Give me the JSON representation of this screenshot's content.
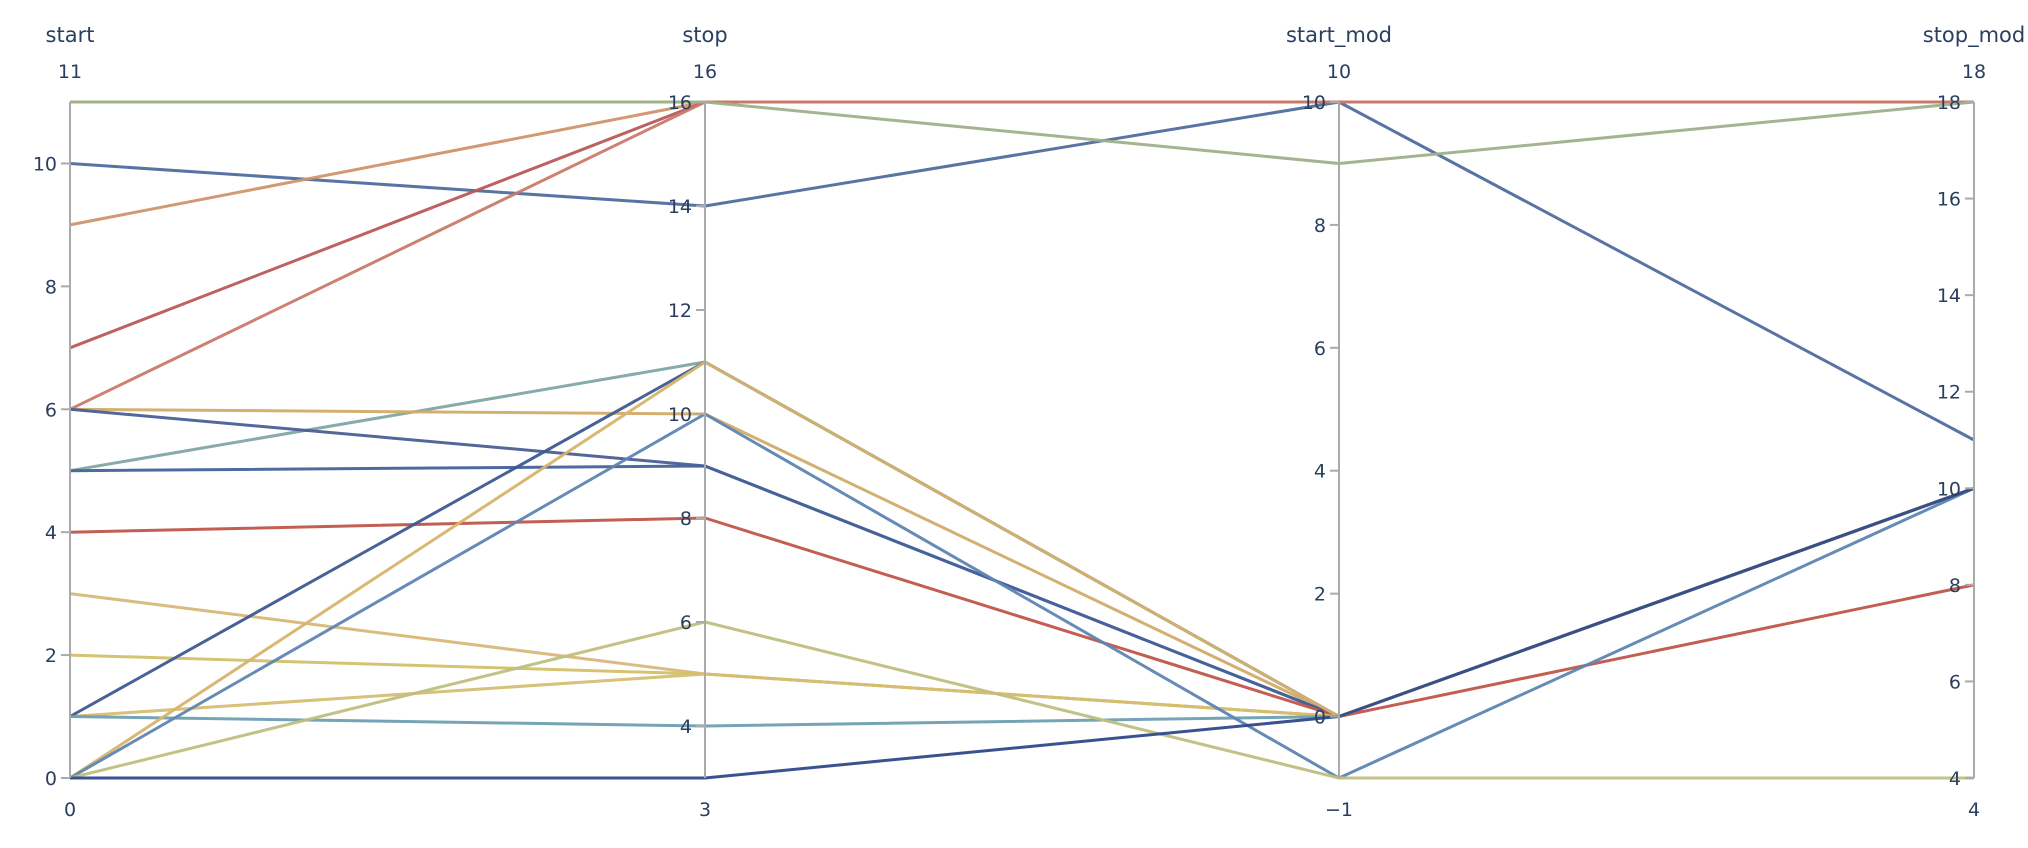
{
  "chart_data": {
    "type": "parallel_coordinates",
    "dimensions": [
      {
        "label": "start",
        "range": [
          0,
          11
        ],
        "ticks": [
          0,
          2,
          4,
          6,
          8,
          10
        ],
        "min_label": "0",
        "max_label": "11"
      },
      {
        "label": "stop",
        "range": [
          3,
          16
        ],
        "ticks": [
          4,
          6,
          8,
          10,
          12,
          14,
          16
        ],
        "min_label": "3",
        "max_label": "16"
      },
      {
        "label": "start_mod",
        "range": [
          -1,
          10
        ],
        "ticks": [
          0,
          2,
          4,
          6,
          8,
          10
        ],
        "min_label": "−1",
        "max_label": "10"
      },
      {
        "label": "stop_mod",
        "range": [
          4,
          18
        ],
        "ticks": [
          4,
          6,
          8,
          10,
          12,
          14,
          16,
          18
        ],
        "min_label": "4",
        "max_label": "18"
      }
    ],
    "lines": [
      {
        "values": [
          11,
          16,
          10,
          18
        ],
        "color": "#b8b88c"
      },
      {
        "values": [
          10,
          14,
          10,
          11
        ],
        "color": "#4f6d9e"
      },
      {
        "values": [
          9,
          16,
          10,
          18
        ],
        "color": "#d0946a"
      },
      {
        "values": [
          7,
          16,
          10,
          18
        ],
        "color": "#b9585a"
      },
      {
        "values": [
          6,
          16,
          10,
          18
        ],
        "color": "#c97a6a"
      },
      {
        "values": [
          5,
          11,
          0,
          10
        ],
        "color": "#7fa7a4"
      },
      {
        "values": [
          6,
          10,
          0,
          10
        ],
        "color": "#d1ab6a"
      },
      {
        "values": [
          6,
          9,
          0,
          10
        ],
        "color": "#4a5f95"
      },
      {
        "values": [
          5,
          9,
          0,
          10
        ],
        "color": "#44639a"
      },
      {
        "values": [
          4,
          8,
          0,
          8
        ],
        "color": "#c0554a"
      },
      {
        "values": [
          3,
          5,
          0,
          10
        ],
        "color": "#d8b87a"
      },
      {
        "values": [
          2,
          5,
          0,
          10
        ],
        "color": "#d4c06a"
      },
      {
        "values": [
          1,
          5,
          0,
          10
        ],
        "color": "#d6be72"
      },
      {
        "values": [
          1,
          11,
          0,
          10
        ],
        "color": "#3e5a92"
      },
      {
        "values": [
          1,
          4,
          0,
          10
        ],
        "color": "#6e9fb2"
      },
      {
        "values": [
          0,
          11,
          0,
          10
        ],
        "color": "#d8b46c"
      },
      {
        "values": [
          0,
          10,
          -1,
          10
        ],
        "color": "#5e85b2"
      },
      {
        "values": [
          0,
          6,
          -1,
          4
        ],
        "color": "#bfbf80"
      },
      {
        "values": [
          0,
          3,
          0,
          10
        ],
        "color": "#2f4a8a"
      },
      {
        "values": [
          11,
          16,
          9,
          18
        ],
        "color": "#9fb08a"
      }
    ]
  }
}
